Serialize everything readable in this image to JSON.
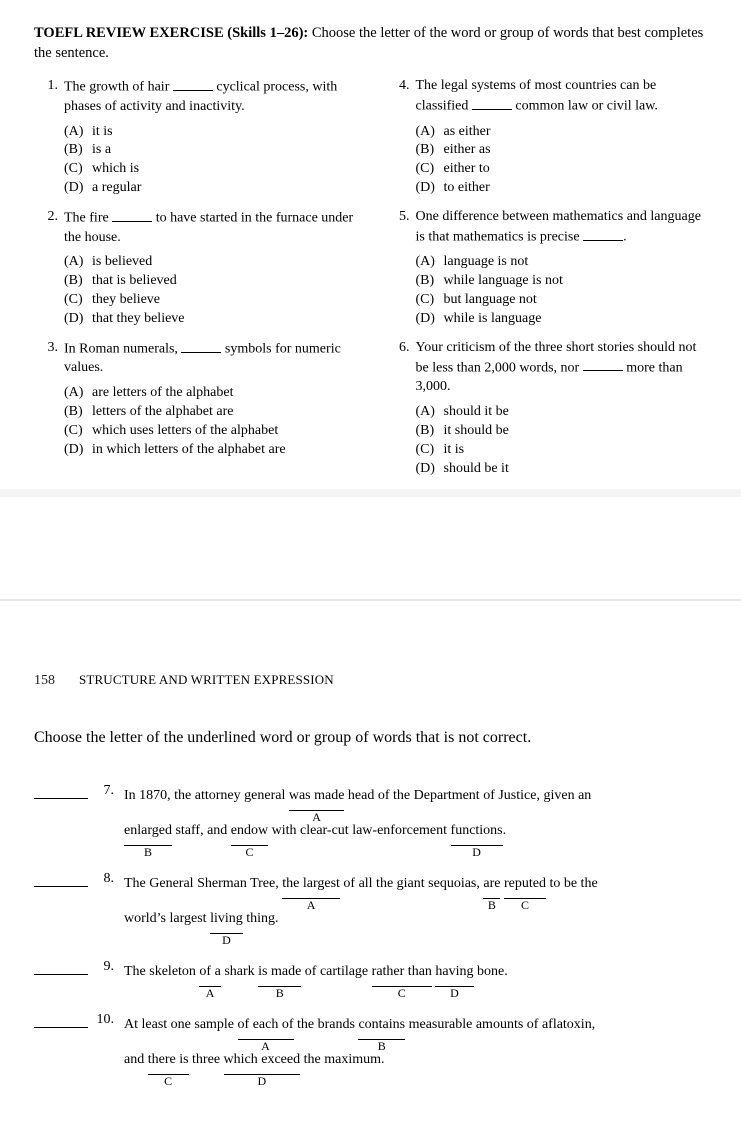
{
  "colors": {
    "text": "#000000",
    "bg": "#ffffff",
    "rule": "#e7e7e7"
  },
  "header": {
    "strong": "TOEFL REVIEW EXERCISE (Skills 1–26):",
    "rest": " Choose the letter of the word or group of words that best completes the sentence."
  },
  "left": [
    {
      "n": "1.",
      "stem_a": "The growth of hair ",
      "stem_b": " cyclical process, with phases of activity and inactivity.",
      "opts": [
        [
          "(A)",
          "it is"
        ],
        [
          "(B)",
          "is a"
        ],
        [
          "(C)",
          "which is"
        ],
        [
          "(D)",
          "a regular"
        ]
      ]
    },
    {
      "n": "2.",
      "stem_a": "The fire ",
      "stem_b": " to have started in the furnace under the house.",
      "opts": [
        [
          "(A)",
          "is believed"
        ],
        [
          "(B)",
          "that is believed"
        ],
        [
          "(C)",
          "they believe"
        ],
        [
          "(D)",
          "that they believe"
        ]
      ]
    },
    {
      "n": "3.",
      "stem_a": "In Roman numerals, ",
      "stem_b": " symbols for numeric values.",
      "opts": [
        [
          "(A)",
          "are letters of the alphabet"
        ],
        [
          "(B)",
          "letters of the alphabet are"
        ],
        [
          "(C)",
          "which uses letters of the alphabet"
        ],
        [
          "(D)",
          "in which letters of the alphabet are"
        ]
      ]
    }
  ],
  "right": [
    {
      "n": "4.",
      "stem_a": "The legal systems of most countries can be classified ",
      "stem_b": " common law or civil law.",
      "opts": [
        [
          "(A)",
          "as either"
        ],
        [
          "(B)",
          "either as"
        ],
        [
          "(C)",
          "either to"
        ],
        [
          "(D)",
          "to either"
        ]
      ]
    },
    {
      "n": "5.",
      "stem_a": "One difference between mathematics and language is that mathematics is precise ",
      "stem_b": ".",
      "opts": [
        [
          "(A)",
          "language is not"
        ],
        [
          "(B)",
          "while language is not"
        ],
        [
          "(C)",
          "but language not"
        ],
        [
          "(D)",
          "while is language"
        ]
      ]
    },
    {
      "n": "6.",
      "stem_a": "Your criticism of the three short stories should not be less than 2,000 words, nor ",
      "stem_b": " more than 3,000.",
      "opts": [
        [
          "(A)",
          "should it be"
        ],
        [
          "(B)",
          "it should be"
        ],
        [
          "(C)",
          "it is"
        ],
        [
          "(D)",
          "should be it"
        ]
      ]
    }
  ],
  "page2": {
    "num": "158",
    "section": "STRUCTURE AND WRITTEN EXPRESSION",
    "instr": "Choose the letter of the underlined word or group of words that is not correct.",
    "items": [
      {
        "n": "7.",
        "parts": [
          {
            "t": "In 1870, the attorney general "
          },
          {
            "u": "was made",
            "l": "A"
          },
          {
            "t": " head of the Department of Justice, given an"
          },
          {
            "br": true
          },
          {
            "u": "enlarged",
            "l": "B"
          },
          {
            "t": " staff, and "
          },
          {
            "u": "endow",
            "l": "C"
          },
          {
            "t": " with clear-cut law-enforcement "
          },
          {
            "u": "functions",
            "l": "D"
          },
          {
            "t": "."
          }
        ]
      },
      {
        "n": "8.",
        "parts": [
          {
            "t": "The General Sherman Tree, "
          },
          {
            "u": "the largest",
            "l": "A"
          },
          {
            "t": " of all the giant sequoias, "
          },
          {
            "u": "are",
            "l": "B"
          },
          {
            "t": " "
          },
          {
            "u": "reputed",
            "l": "C"
          },
          {
            "t": " to be the"
          },
          {
            "br": true
          },
          {
            "t": "world’s largest "
          },
          {
            "u": "living",
            "l": "D"
          },
          {
            "t": " thing."
          }
        ]
      },
      {
        "n": "9.",
        "parts": [
          {
            "t": "The skeleton "
          },
          {
            "u": "of a",
            "l": "A"
          },
          {
            "t": " shark "
          },
          {
            "u": "is made",
            "l": "B"
          },
          {
            "t": " of cartilage "
          },
          {
            "u": "rather than",
            "l": "C"
          },
          {
            "t": " "
          },
          {
            "u": "having",
            "l": "D"
          },
          {
            "t": " bone."
          }
        ]
      },
      {
        "n": "10.",
        "parts": [
          {
            "t": "At least one sample "
          },
          {
            "u": "of each of",
            "l": "A"
          },
          {
            "t": " the brands "
          },
          {
            "u": "contains",
            "l": "B"
          },
          {
            "t": " measurable amounts of aflatoxin,"
          },
          {
            "br": true
          },
          {
            "t": "and "
          },
          {
            "u": "there is",
            "l": "C"
          },
          {
            "t": " three "
          },
          {
            "u": "which exceed",
            "l": "D"
          },
          {
            "t": " the maximum."
          }
        ]
      }
    ]
  }
}
